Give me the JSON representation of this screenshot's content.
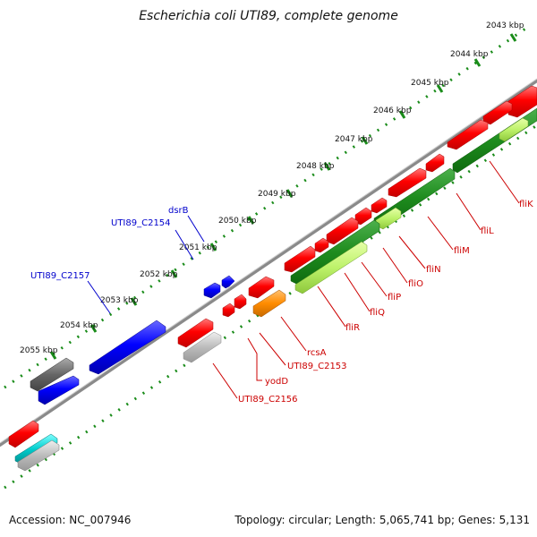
{
  "title": "Escherichia coli UTI89, complete genome",
  "footer": {
    "accession": "Accession: NC_007946",
    "summary": "Topology: circular; Length: 5,065,741 bp; Genes: 5,131"
  },
  "colors": {
    "forward_gene": "#ff0000",
    "reverse_gene": "#0000ff",
    "grey_gene": "#777777",
    "light_grey_gene": "#bbbbbb",
    "orange_gene": "#ff8c00",
    "cyan_gene": "#00cccc",
    "dark_green_cds": "#1e8c1e",
    "light_green_cds": "#bdf26a",
    "tick": "#1a8c1a",
    "red_label": "#cc0000",
    "blue_label": "#0000cc",
    "backbone": "#8a8a8a"
  },
  "ruler_labels": [
    "2043 kbp",
    "2044 kbp",
    "2045 kbp",
    "2046 kbp",
    "2047 kbp",
    "2048 kbp",
    "2049 kbp",
    "2050 kbp",
    "2051 kbp",
    "2052 kbp",
    "2053 kbp",
    "2054 kbp",
    "2055 kbp"
  ],
  "gene_labels_red": [
    "fliK",
    "fliL",
    "fliM",
    "fliN",
    "fliO",
    "fliP",
    "fliQ",
    "fliR",
    "rcsA",
    "UTI89_C2153",
    "yodD",
    "UTI89_C2156"
  ],
  "gene_labels_blue": [
    "dsrB",
    "UTI89_C2154",
    "UTI89_C2157"
  ]
}
